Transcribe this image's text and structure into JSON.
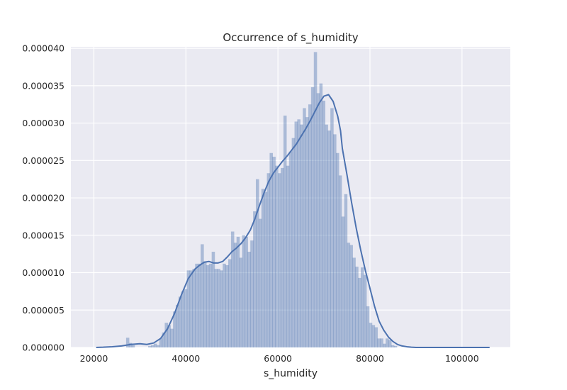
{
  "chart_data": {
    "type": "bar",
    "title": "Occurrence of s_humidity",
    "xlabel": "s_humidity",
    "ylabel": "",
    "xlim": [
      15000,
      110500
    ],
    "ylim": [
      0,
      4.02e-05
    ],
    "x_ticks": [
      20000,
      40000,
      60000,
      80000,
      100000
    ],
    "x_tick_labels": [
      "20000",
      "40000",
      "60000",
      "80000",
      "100000"
    ],
    "y_ticks": [
      0,
      5e-06,
      1e-05,
      1.5e-05,
      2e-05,
      2.5e-05,
      3e-05,
      3.5e-05,
      4e-05
    ],
    "y_tick_labels": [
      "0.000000",
      "0.000005",
      "0.000010",
      "0.000015",
      "0.000020",
      "0.000025",
      "0.000030",
      "0.000035",
      "0.000040"
    ],
    "grid": true,
    "colors": {
      "background": "#eaeaf2",
      "grid": "#ffffff",
      "bars": "#4c72b0",
      "kde": "#4c72b0"
    },
    "histogram": {
      "bin_width": 700,
      "bars": [
        [
          27350,
          1.3e-06
        ],
        [
          27950,
          6e-07
        ],
        [
          28550,
          3e-07
        ],
        [
          32150,
          2e-07
        ],
        [
          32750,
          3e-07
        ],
        [
          33350,
          5e-07
        ],
        [
          33950,
          3e-07
        ],
        [
          34550,
          1.2e-06
        ],
        [
          35150,
          2e-06
        ],
        [
          35750,
          3.3e-06
        ],
        [
          36350,
          3e-06
        ],
        [
          36950,
          2.5e-06
        ],
        [
          37550,
          4.8e-06
        ],
        [
          38150,
          5.7e-06
        ],
        [
          38750,
          6.8e-06
        ],
        [
          39350,
          7.5e-06
        ],
        [
          39950,
          7.8e-06
        ],
        [
          40550,
          1.03e-05
        ],
        [
          41150,
          1.03e-05
        ],
        [
          41750,
          1.05e-05
        ],
        [
          42350,
          1.12e-05
        ],
        [
          42950,
          1.12e-05
        ],
        [
          43550,
          1.38e-05
        ],
        [
          44150,
          1.15e-05
        ],
        [
          44750,
          1.1e-05
        ],
        [
          45350,
          1.12e-05
        ],
        [
          45950,
          1.28e-05
        ],
        [
          46550,
          1.05e-05
        ],
        [
          47150,
          1.05e-05
        ],
        [
          47750,
          1.03e-05
        ],
        [
          48350,
          1.12e-05
        ],
        [
          48950,
          1.1e-05
        ],
        [
          49550,
          1.18e-05
        ],
        [
          50150,
          1.55e-05
        ],
        [
          50750,
          1.4e-05
        ],
        [
          51350,
          1.48e-05
        ],
        [
          51950,
          1.2e-05
        ],
        [
          52550,
          1.5e-05
        ],
        [
          53150,
          1.48e-05
        ],
        [
          53750,
          1.28e-05
        ],
        [
          54350,
          1.43e-05
        ],
        [
          54950,
          1.82e-05
        ],
        [
          55550,
          2.25e-05
        ],
        [
          56150,
          1.72e-05
        ],
        [
          56750,
          2.12e-05
        ],
        [
          57350,
          2.08e-05
        ],
        [
          57950,
          2.33e-05
        ],
        [
          58550,
          2.6e-05
        ],
        [
          59150,
          2.55e-05
        ],
        [
          59750,
          2.43e-05
        ],
        [
          60350,
          2.33e-05
        ],
        [
          60950,
          2.4e-05
        ],
        [
          61550,
          3.1e-05
        ],
        [
          62150,
          2.43e-05
        ],
        [
          62750,
          2.62e-05
        ],
        [
          63350,
          2.8e-05
        ],
        [
          63950,
          3.02e-05
        ],
        [
          64550,
          3.05e-05
        ],
        [
          65150,
          2.98e-05
        ],
        [
          65750,
          3.2e-05
        ],
        [
          66350,
          3.08e-05
        ],
        [
          66950,
          3.25e-05
        ],
        [
          67550,
          3.48e-05
        ],
        [
          68150,
          3.95e-05
        ],
        [
          68750,
          3.4e-05
        ],
        [
          69350,
          3.53e-05
        ],
        [
          69950,
          3.3e-05
        ],
        [
          70550,
          2.98e-05
        ],
        [
          71150,
          2.9e-05
        ],
        [
          71750,
          3.2e-05
        ],
        [
          72350,
          2.85e-05
        ],
        [
          72950,
          2.6e-05
        ],
        [
          73550,
          2.3e-05
        ],
        [
          74150,
          1.75e-05
        ],
        [
          74750,
          2.05e-05
        ],
        [
          75350,
          1.4e-05
        ],
        [
          75950,
          1.37e-05
        ],
        [
          76550,
          1.2e-05
        ],
        [
          77150,
          1.08e-05
        ],
        [
          77750,
          9.3e-06
        ],
        [
          78350,
          1.07e-05
        ],
        [
          78950,
          9.7e-06
        ],
        [
          79550,
          5.5e-06
        ],
        [
          80150,
          3.3e-06
        ],
        [
          80750,
          3e-06
        ],
        [
          81350,
          2.7e-06
        ],
        [
          81950,
          1.2e-06
        ],
        [
          82550,
          1.2e-06
        ],
        [
          83150,
          5e-07
        ],
        [
          83750,
          1.2e-06
        ],
        [
          84350,
          1e-06
        ],
        [
          84950,
          3e-07
        ],
        [
          85550,
          2e-07
        ]
      ]
    },
    "kde": {
      "x": [
        20500,
        22000,
        24000,
        26000,
        28000,
        30000,
        31500,
        33000,
        34500,
        36000,
        37500,
        39000,
        40500,
        42000,
        43000,
        44000,
        45000,
        46000,
        47000,
        48000,
        49000,
        50000,
        51000,
        52000,
        53000,
        54000,
        55000,
        56000,
        57000,
        58000,
        59000,
        60000,
        61000,
        62000,
        63000,
        64000,
        65000,
        66000,
        67000,
        68000,
        69000,
        70000,
        71000,
        72000,
        73000,
        73600,
        74000,
        75000,
        76000,
        77000,
        78000,
        79000,
        80000,
        81000,
        82000,
        83000,
        84000,
        85000,
        86000,
        87000,
        88000,
        89000,
        90000,
        91000,
        92000,
        94000,
        96000,
        100000,
        106000
      ],
      "y": [
        0,
        3e-08,
        1e-07,
        2e-07,
        4e-07,
        5e-07,
        4e-07,
        6e-07,
        1.2e-06,
        2.5e-06,
        4.5e-06,
        7e-06,
        9.2e-06,
        1.05e-05,
        1.1e-05,
        1.14e-05,
        1.15e-05,
        1.13e-05,
        1.13e-05,
        1.15e-05,
        1.21e-05,
        1.28e-05,
        1.33e-05,
        1.39e-05,
        1.47e-05,
        1.57e-05,
        1.72e-05,
        1.9e-05,
        2.07e-05,
        2.22e-05,
        2.33e-05,
        2.41e-05,
        2.49e-05,
        2.56e-05,
        2.64e-05,
        2.72e-05,
        2.82e-05,
        2.92e-05,
        3.03e-05,
        3.15e-05,
        3.27e-05,
        3.36e-05,
        3.38e-05,
        3.29e-05,
        3.09e-05,
        2.9e-05,
        2.66e-05,
        2.31e-05,
        1.94e-05,
        1.6e-05,
        1.3e-05,
        1.03e-05,
        7.9e-06,
        5.5e-06,
        3.5e-06,
        2.3e-06,
        1.4e-06,
        8e-07,
        4e-07,
        2e-07,
        1e-07,
        3e-08,
        0,
        0,
        0,
        0,
        0,
        0,
        0
      ]
    }
  }
}
